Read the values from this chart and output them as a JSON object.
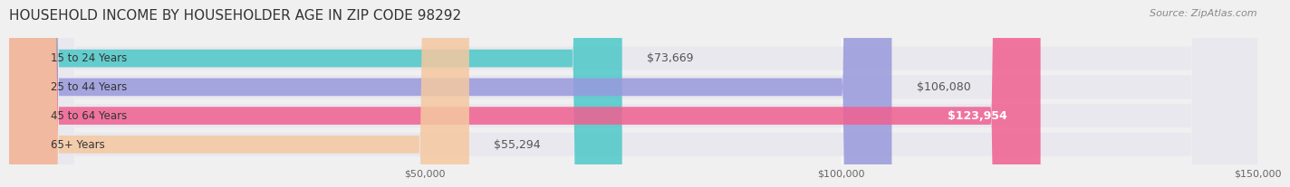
{
  "title": "HOUSEHOLD INCOME BY HOUSEHOLDER AGE IN ZIP CODE 98292",
  "source": "Source: ZipAtlas.com",
  "categories": [
    "15 to 24 Years",
    "25 to 44 Years",
    "45 to 64 Years",
    "65+ Years"
  ],
  "values": [
    73669,
    106080,
    123954,
    55294
  ],
  "bar_colors": [
    "#4DC8C8",
    "#9999DD",
    "#F06090",
    "#F5C8A0"
  ],
  "bar_labels": [
    "$73,669",
    "$106,080",
    "$123,954",
    "$55,294"
  ],
  "xlim": [
    0,
    150000
  ],
  "xticks": [
    50000,
    100000,
    150000
  ],
  "xtick_labels": [
    "$50,000",
    "$100,000",
    "$150,000"
  ],
  "background_color": "#f0f0f0",
  "bar_bg_color": "#e8e8ee",
  "title_fontsize": 11,
  "source_fontsize": 8,
  "label_fontsize": 9,
  "category_fontsize": 8.5
}
